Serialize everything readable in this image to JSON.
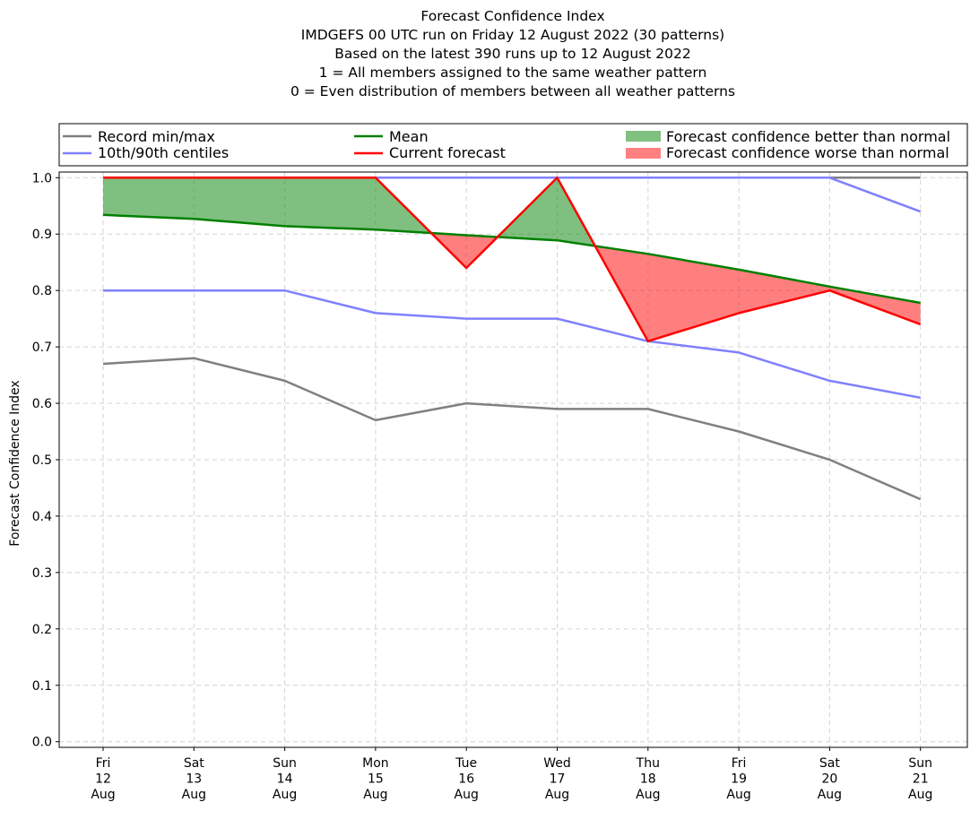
{
  "chart_data": {
    "type": "line",
    "title_lines": [
      "Forecast Confidence Index",
      "IMDGEFS 00 UTC run on Friday 12 August 2022 (30 patterns)",
      "Based on the latest 390 runs up to 12 August 2022",
      "1 = All members assigned to the same weather pattern",
      "0 = Even distribution of members between all weather patterns"
    ],
    "ylabel": "Forecast Confidence Index",
    "xlabel": "",
    "ylim": [
      -0.01,
      1.01
    ],
    "yticks": [
      0.0,
      0.1,
      0.2,
      0.3,
      0.4,
      0.5,
      0.6,
      0.7,
      0.8,
      0.9,
      1.0
    ],
    "ytick_labels": [
      "0.0",
      "0.1",
      "0.2",
      "0.3",
      "0.4",
      "0.5",
      "0.6",
      "0.7",
      "0.8",
      "0.9",
      "1.0"
    ],
    "grid": true,
    "legend_position": "top",
    "categories": [
      [
        "Fri",
        "12",
        "Aug"
      ],
      [
        "Sat",
        "13",
        "Aug"
      ],
      [
        "Sun",
        "14",
        "Aug"
      ],
      [
        "Mon",
        "15",
        "Aug"
      ],
      [
        "Tue",
        "16",
        "Aug"
      ],
      [
        "Wed",
        "17",
        "Aug"
      ],
      [
        "Thu",
        "18",
        "Aug"
      ],
      [
        "Fri",
        "19",
        "Aug"
      ],
      [
        "Sat",
        "20",
        "Aug"
      ],
      [
        "Sun",
        "21",
        "Aug"
      ]
    ],
    "series": [
      {
        "name": "Record min/max",
        "role": "record_min",
        "color": "#808080",
        "values": [
          0.67,
          0.68,
          0.64,
          0.57,
          0.6,
          0.59,
          0.59,
          0.55,
          0.5,
          0.43
        ]
      },
      {
        "name": "Record min/max",
        "role": "record_max",
        "color": "#808080",
        "values": [
          1.0,
          1.0,
          1.0,
          1.0,
          1.0,
          1.0,
          1.0,
          1.0,
          1.0,
          1.0
        ]
      },
      {
        "name": "10th/90th centiles",
        "role": "p10",
        "color": "#8080ff",
        "values": [
          0.8,
          0.8,
          0.8,
          0.76,
          0.75,
          0.75,
          0.71,
          0.69,
          0.64,
          0.61
        ]
      },
      {
        "name": "10th/90th centiles",
        "role": "p90",
        "color": "#8080ff",
        "values": [
          1.0,
          1.0,
          1.0,
          1.0,
          1.0,
          1.0,
          1.0,
          1.0,
          1.0,
          0.94
        ]
      },
      {
        "name": "Mean",
        "role": "mean",
        "color": "#008000",
        "values": [
          0.934,
          0.927,
          0.914,
          0.908,
          0.898,
          0.889,
          0.865,
          0.837,
          0.807,
          0.778
        ]
      },
      {
        "name": "Current forecast",
        "role": "current",
        "color": "#ff0000",
        "values": [
          1.0,
          1.0,
          1.0,
          1.0,
          0.84,
          1.0,
          0.71,
          0.76,
          0.8,
          0.74
        ]
      }
    ],
    "fills": [
      {
        "name": "Forecast confidence better than normal",
        "color": "#008000",
        "opacity": 0.5
      },
      {
        "name": "Forecast confidence worse than normal",
        "color": "#ff0000",
        "opacity": 0.5
      }
    ],
    "legend": [
      {
        "label": "Record min/max",
        "kind": "line",
        "color": "#808080"
      },
      {
        "label": "10th/90th centiles",
        "kind": "line",
        "color": "#8080ff"
      },
      {
        "label": "Mean",
        "kind": "line",
        "color": "#008000"
      },
      {
        "label": "Current forecast",
        "kind": "line",
        "color": "#ff0000"
      },
      {
        "label": "Forecast confidence better than normal",
        "kind": "patch",
        "color": "#80c080"
      },
      {
        "label": "Forecast confidence worse than normal",
        "kind": "patch",
        "color": "#ff8080"
      }
    ]
  }
}
